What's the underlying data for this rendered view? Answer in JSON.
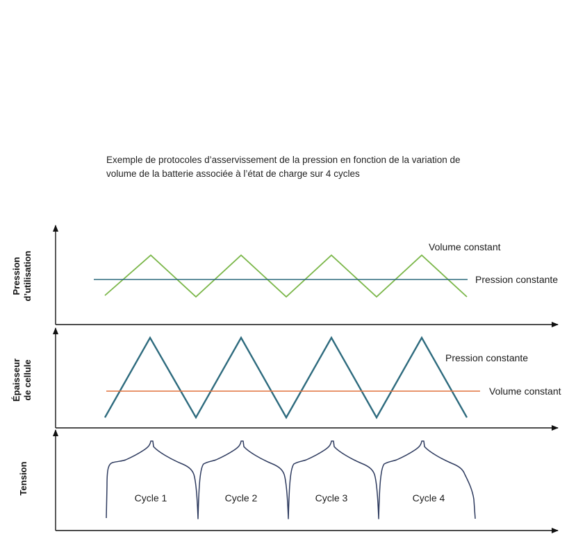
{
  "caption": {
    "line1": "Exemple de protocoles d’asservissement de la pression en fonction de la variation de",
    "line2": "volume de la batterie associée à l’état de charge sur 4 cycles"
  },
  "panels": {
    "pressure": {
      "ylabel_line1": "Pression",
      "ylabel_line2": "d’utilisation",
      "series_zigzag": "Volume constant",
      "series_flat": "Pression constante"
    },
    "thickness": {
      "ylabel_line1": "Épaisseur",
      "ylabel_line2": "de cellule",
      "series_zigzag": "Pression constante",
      "series_flat": "Volume constant"
    },
    "voltage": {
      "ylabel": "Tension",
      "cycles": [
        "Cycle 1",
        "Cycle 2",
        "Cycle 3",
        "Cycle 4"
      ]
    }
  },
  "colors": {
    "green": "#7ab648",
    "teal": "#2e6b7e",
    "orange": "#e0703c",
    "navy": "#2d3a5e",
    "axis": "#111111"
  },
  "icons": [
    "arrow-up-icon",
    "arrow-right-icon"
  ]
}
